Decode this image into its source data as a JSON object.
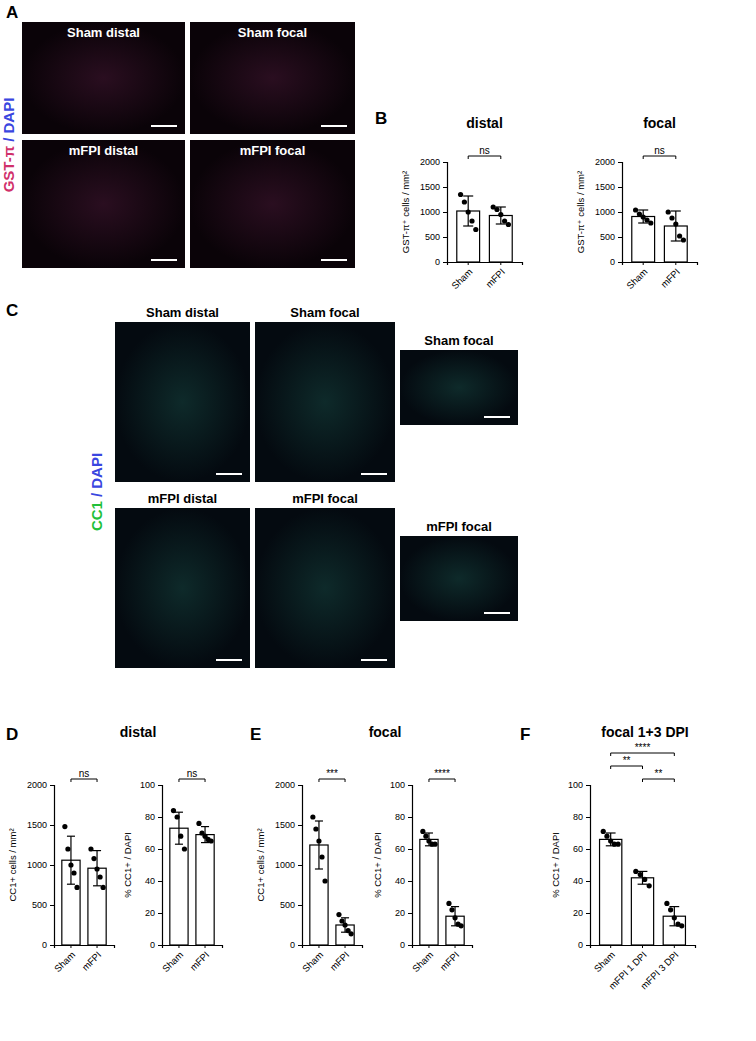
{
  "panels": [
    {
      "letter": "A",
      "stain": [
        {
          "text": "GST-π",
          "color": "#d0306a"
        },
        {
          "text": "/ DAPI",
          "color": "#3a46e0"
        }
      ],
      "tiles": [
        "Sham distal",
        "Sham focal",
        "mFPI distal",
        "mFPI focal"
      ]
    },
    {
      "letter": "B"
    },
    {
      "letter": "C",
      "stain": [
        {
          "text": "CC1",
          "color": "#22c03a"
        },
        {
          "text": "/ DAPI",
          "color": "#3a46e0"
        }
      ],
      "tiles": [
        "Sham distal",
        "Sham focal",
        "mFPI distal",
        "mFPI focal"
      ],
      "insets": [
        "Sham focal",
        "mFPI focal"
      ]
    },
    {
      "letter": "D",
      "title": "distal"
    },
    {
      "letter": "E",
      "title": "focal"
    },
    {
      "letter": "F",
      "title": "focal 1+3 DPI"
    }
  ],
  "chart_data": [
    {
      "type": "bar",
      "title": "distal",
      "ylabel": "GST-π⁺ cells / mm²",
      "categories": [
        "Sham",
        "mFPI"
      ],
      "values": [
        1020,
        930
      ],
      "errors": [
        300,
        170
      ],
      "points": [
        [
          1350,
          1200,
          1000,
          820,
          650
        ],
        [
          1100,
          1050,
          950,
          820,
          750
        ]
      ],
      "color": "#ffffff",
      "ylim": [
        0,
        2000
      ],
      "yticks": [
        0,
        500,
        1000,
        1500,
        2000
      ],
      "annotations": [
        {
          "text": "ns",
          "from": "Sham",
          "to": "mFPI"
        }
      ]
    },
    {
      "type": "bar",
      "title": "focal",
      "ylabel": "GST-π⁺ cells / mm²",
      "categories": [
        "Sham",
        "mFPI"
      ],
      "values": [
        910,
        720
      ],
      "errors": [
        130,
        300
      ],
      "points": [
        [
          1040,
          960,
          900,
          840,
          780
        ],
        [
          1000,
          880,
          760,
          520,
          440
        ]
      ],
      "color": "#ffffff",
      "ylim": [
        0,
        2000
      ],
      "yticks": [
        0,
        500,
        1000,
        1500,
        2000
      ],
      "annotations": [
        {
          "text": "ns",
          "from": "Sham",
          "to": "mFPI"
        }
      ]
    },
    {
      "type": "bar",
      "ylabel": "CC1+ cells / mm²",
      "categories": [
        "Sham",
        "mFPI"
      ],
      "values": [
        1060,
        960
      ],
      "errors": [
        300,
        220
      ],
      "points": [
        [
          1480,
          1200,
          1000,
          900,
          720
        ],
        [
          1200,
          1080,
          950,
          850,
          720
        ]
      ],
      "color": "#ffffff",
      "ylim": [
        0,
        2000
      ],
      "yticks": [
        0,
        500,
        1000,
        1500,
        2000
      ],
      "annotations": [
        {
          "text": "ns",
          "from": "Sham",
          "to": "mFPI"
        }
      ]
    },
    {
      "type": "bar",
      "ylabel": "% CC1+ / DAPI",
      "categories": [
        "Sham",
        "mFPI"
      ],
      "values": [
        73,
        69
      ],
      "errors": [
        10,
        5
      ],
      "points": [
        [
          84,
          80,
          68,
          60
        ],
        [
          76,
          70,
          68,
          66,
          65
        ]
      ],
      "color": "#ffffff",
      "ylim": [
        0,
        100
      ],
      "yticks": [
        0,
        20,
        40,
        60,
        80,
        100
      ],
      "annotations": [
        {
          "text": "ns",
          "from": "Sham",
          "to": "mFPI"
        }
      ]
    },
    {
      "type": "bar",
      "ylabel": "CC1+ cells / mm²",
      "categories": [
        "Sham",
        "mFPI"
      ],
      "values": [
        1250,
        250
      ],
      "errors": [
        300,
        90
      ],
      "points": [
        [
          1600,
          1450,
          1300,
          1100,
          800
        ],
        [
          380,
          300,
          250,
          180,
          140
        ]
      ],
      "color": "#ffffff",
      "ylim": [
        0,
        2000
      ],
      "yticks": [
        0,
        500,
        1000,
        1500,
        2000
      ],
      "annotations": [
        {
          "text": "***",
          "from": "Sham",
          "to": "mFPI"
        }
      ]
    },
    {
      "type": "bar",
      "ylabel": "% CC1+ / DAPI",
      "categories": [
        "Sham",
        "mFPI"
      ],
      "values": [
        66,
        18
      ],
      "errors": [
        4,
        6
      ],
      "points": [
        [
          71,
          68,
          65,
          63,
          63
        ],
        [
          26,
          22,
          17,
          13,
          12
        ]
      ],
      "color": "#ffffff",
      "ylim": [
        0,
        100
      ],
      "yticks": [
        0,
        20,
        40,
        60,
        80,
        100
      ],
      "annotations": [
        {
          "text": "****",
          "from": "Sham",
          "to": "mFPI"
        }
      ]
    },
    {
      "type": "bar",
      "ylabel": "% CC1+ / DAPI",
      "categories": [
        "Sham",
        "mFPI 1 DPI",
        "mFPI 3 DPI"
      ],
      "values": [
        66,
        42,
        18
      ],
      "errors": [
        4,
        4,
        6
      ],
      "points": [
        [
          71,
          68,
          65,
          63,
          63
        ],
        [
          46,
          44,
          41,
          37
        ],
        [
          26,
          22,
          17,
          13,
          12
        ]
      ],
      "color": "#ffffff",
      "ylim": [
        0,
        100
      ],
      "yticks": [
        0,
        20,
        40,
        60,
        80,
        100
      ],
      "annotations": [
        {
          "text": "**",
          "from": "Sham",
          "to": "mFPI 1 DPI"
        },
        {
          "text": "****",
          "from": "Sham",
          "to": "mFPI 3 DPI"
        },
        {
          "text": "**",
          "from": "mFPI 1 DPI",
          "to": "mFPI 3 DPI"
        }
      ]
    }
  ]
}
